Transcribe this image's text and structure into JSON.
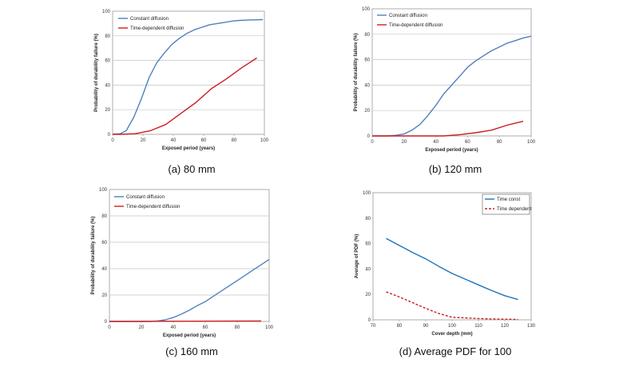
{
  "chart_data": [
    {
      "type": "line",
      "caption": "(a) 80 mm",
      "xlabel": "Exposed period (years)",
      "ylabel": "Probability of durability failure (%)",
      "xlim": [
        0,
        100
      ],
      "ylim": [
        0,
        100
      ],
      "xticks": [
        0,
        20,
        40,
        60,
        80,
        100
      ],
      "yticks": [
        0,
        20,
        40,
        60,
        80,
        100
      ],
      "grid": true,
      "legend": "top-left",
      "series": [
        {
          "name": "Constant diffusion",
          "color": "#4f81bd",
          "dash": false,
          "x": [
            0,
            5,
            9,
            14,
            19,
            24,
            29,
            34,
            39,
            44,
            49,
            54,
            59,
            64,
            69,
            74,
            79,
            84,
            89,
            94,
            99
          ],
          "y": [
            0,
            0.5,
            3,
            14,
            29,
            46,
            58,
            66,
            73,
            78,
            82,
            85,
            87,
            89,
            90,
            91,
            92,
            92.5,
            92.8,
            93,
            93.2
          ]
        },
        {
          "name": "Time-dependent diffusion",
          "color": "#cc1f1f",
          "dash": false,
          "x": [
            0,
            5,
            15,
            25,
            35,
            45,
            55,
            65,
            75,
            85,
            95
          ],
          "y": [
            0,
            0,
            0.5,
            3,
            8,
            17,
            26,
            37,
            45,
            54,
            62
          ]
        }
      ]
    },
    {
      "type": "line",
      "caption": "(b) 120 mm",
      "xlabel": "Exposed period (years)",
      "ylabel": "Probability of durability failure (%)",
      "xlim": [
        0,
        100
      ],
      "ylim": [
        0,
        100
      ],
      "xticks": [
        0,
        20,
        40,
        60,
        80,
        100
      ],
      "yticks": [
        0,
        20,
        40,
        60,
        80,
        100
      ],
      "grid": true,
      "legend": "top-left",
      "series": [
        {
          "name": "Constant diffusion",
          "color": "#4f81bd",
          "dash": false,
          "x": [
            0,
            10,
            15,
            20,
            25,
            30,
            35,
            40,
            45,
            50,
            55,
            60,
            65,
            70,
            75,
            80,
            85,
            90,
            95,
            100
          ],
          "y": [
            0,
            0,
            0.5,
            1.5,
            4.5,
            9,
            16,
            24,
            33,
            40,
            47,
            54,
            59,
            63,
            67,
            70,
            73,
            75,
            77,
            78.5
          ]
        },
        {
          "name": "Time-dependent diffusion",
          "color": "#cc1f1f",
          "dash": false,
          "x": [
            0,
            45,
            55,
            65,
            75,
            85,
            95
          ],
          "y": [
            0,
            0,
            1,
            2.5,
            4.5,
            8.5,
            11.5
          ]
        }
      ]
    },
    {
      "type": "line",
      "caption": "(c) 160 mm",
      "xlabel": "Exposed period (years)",
      "ylabel": "Probability of durability failure (%)",
      "xlim": [
        0,
        100
      ],
      "ylim": [
        0,
        100
      ],
      "xticks": [
        0,
        20,
        40,
        60,
        80,
        100
      ],
      "yticks": [
        0,
        20,
        40,
        60,
        80,
        100
      ],
      "grid": true,
      "legend": "top-left",
      "series": [
        {
          "name": "Constant diffusion",
          "color": "#4f81bd",
          "dash": false,
          "x": [
            0,
            25,
            30,
            35,
            40,
            45,
            50,
            55,
            60,
            65,
            70,
            75,
            80,
            85,
            90,
            95,
            100
          ],
          "y": [
            0,
            0,
            0.3,
            1.2,
            3,
            5.5,
            8.5,
            12,
            15,
            19,
            23,
            27,
            31,
            35,
            39,
            43,
            47
          ]
        },
        {
          "name": "Time-dependent diffusion",
          "color": "#cc1f1f",
          "dash": false,
          "x": [
            0,
            95
          ],
          "y": [
            0,
            0.3
          ]
        }
      ]
    },
    {
      "type": "line",
      "caption": "(d) Average PDF for 100",
      "xlabel": "Cover depth (mm)",
      "ylabel": "Average of PDF (%)",
      "xlim": [
        70,
        130
      ],
      "ylim": [
        0,
        100
      ],
      "xticks": [
        70,
        80,
        90,
        100,
        110,
        120,
        130
      ],
      "yticks": [
        0,
        20,
        40,
        60,
        80,
        100
      ],
      "grid": false,
      "legend": "top-right",
      "series": [
        {
          "name": "Time const",
          "color": "#1f72b8",
          "dash": false,
          "x": [
            75,
            80,
            85,
            90,
            95,
            100,
            105,
            110,
            115,
            120,
            125
          ],
          "y": [
            64,
            58.5,
            53,
            48,
            42,
            36.5,
            32,
            27.5,
            23,
            19,
            16
          ]
        },
        {
          "name": "Time dependent",
          "color": "#cc1f1f",
          "dash": true,
          "x": [
            75,
            80,
            85,
            90,
            95,
            100,
            105,
            110,
            115,
            120,
            125
          ],
          "y": [
            22,
            18,
            13.5,
            9,
            5,
            2,
            1.5,
            1,
            0.7,
            0.5,
            0.3
          ]
        }
      ]
    }
  ]
}
